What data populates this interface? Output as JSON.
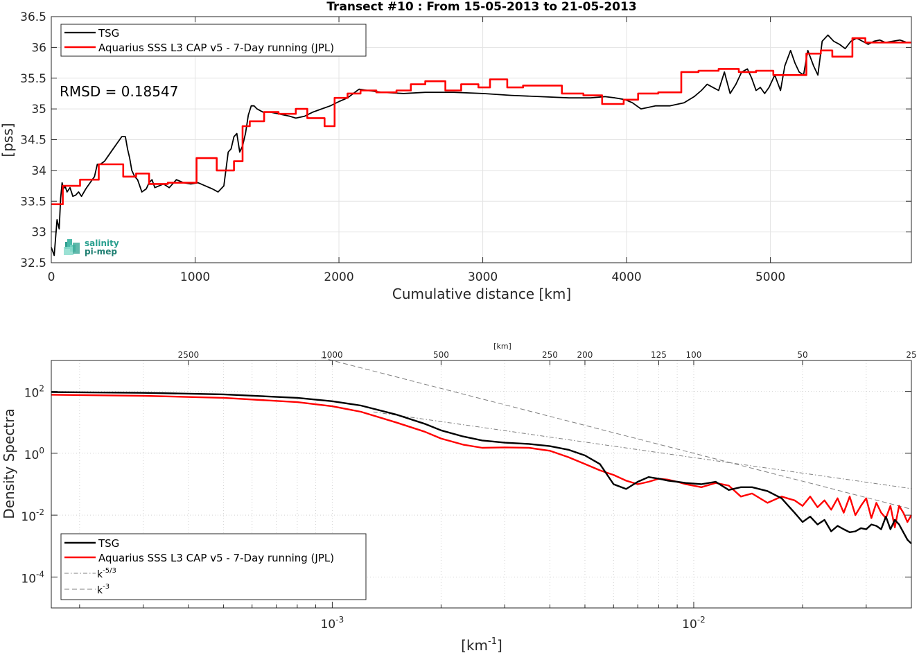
{
  "chart_data": [
    {
      "type": "line",
      "title": "Transect #10 : From 15-05-2013 to 21-05-2013",
      "xlabel": "Cumulative distance [km]",
      "ylabel": "[pss]",
      "xlim": [
        0,
        5980
      ],
      "ylim": [
        32.5,
        36.5
      ],
      "xticks": [
        0,
        1000,
        2000,
        3000,
        4000,
        5000
      ],
      "xtick_labels": [
        "0",
        "1000",
        "2000",
        "3000",
        "4000",
        "5000"
      ],
      "yticks": [
        32.5,
        33,
        33.5,
        34,
        34.5,
        35,
        35.5,
        36,
        36.5
      ],
      "ytick_labels": [
        "32.5",
        "33",
        "33.5",
        "34",
        "34.5",
        "35",
        "35.5",
        "36",
        "36.5"
      ],
      "grid": true,
      "legend_position": "top-left",
      "annotation": "RMSD = 0.18547",
      "logo_text": [
        "salinity",
        "pi-mep"
      ],
      "series": [
        {
          "name": "TSG",
          "color": "#000000",
          "x": [
            0,
            20,
            40,
            55,
            65,
            75,
            85,
            95,
            110,
            130,
            150,
            170,
            190,
            210,
            240,
            270,
            300,
            320,
            340,
            370,
            400,
            430,
            460,
            490,
            515,
            530,
            545,
            560,
            580,
            600,
            630,
            660,
            680,
            700,
            720,
            750,
            780,
            820,
            870,
            920,
            970,
            1020,
            1070,
            1120,
            1160,
            1200,
            1230,
            1250,
            1270,
            1290,
            1310,
            1330,
            1350,
            1370,
            1390,
            1410,
            1430,
            1470,
            1520,
            1580,
            1620,
            1660,
            1700,
            1760,
            1820,
            1880,
            1940,
            2000,
            2060,
            2100,
            2140,
            2200,
            2300,
            2450,
            2600,
            2800,
            3000,
            3200,
            3400,
            3600,
            3750,
            3850,
            3920,
            3990,
            4040,
            4100,
            4200,
            4300,
            4400,
            4470,
            4520,
            4560,
            4600,
            4640,
            4680,
            4720,
            4760,
            4800,
            4840,
            4870,
            4900,
            4930,
            4960,
            4990,
            5030,
            5070,
            5100,
            5140,
            5170,
            5200,
            5230,
            5260,
            5300,
            5330,
            5360,
            5400,
            5440,
            5480,
            5520,
            5560,
            5600,
            5640,
            5680,
            5720,
            5760,
            5800,
            5850,
            5900,
            5950,
            5980
          ],
          "y": [
            32.75,
            32.62,
            33.2,
            33.05,
            33.55,
            33.8,
            33.7,
            33.75,
            33.65,
            33.72,
            33.58,
            33.6,
            33.65,
            33.58,
            33.7,
            33.8,
            33.9,
            34.1,
            34.1,
            34.15,
            34.25,
            34.35,
            34.45,
            34.55,
            34.55,
            34.35,
            34.2,
            34.0,
            33.9,
            33.85,
            33.65,
            33.7,
            33.8,
            33.85,
            33.72,
            33.75,
            33.78,
            33.72,
            33.85,
            33.8,
            33.78,
            33.8,
            33.75,
            33.7,
            33.65,
            33.75,
            34.3,
            34.35,
            34.55,
            34.6,
            34.3,
            34.4,
            34.6,
            34.9,
            35.05,
            35.05,
            35.0,
            34.95,
            34.95,
            34.92,
            34.9,
            34.88,
            34.85,
            34.88,
            34.95,
            35.0,
            35.05,
            35.12,
            35.18,
            35.25,
            35.32,
            35.3,
            35.27,
            35.25,
            35.27,
            35.27,
            35.25,
            35.22,
            35.2,
            35.18,
            35.18,
            35.2,
            35.18,
            35.15,
            35.1,
            35.0,
            35.05,
            35.05,
            35.1,
            35.2,
            35.3,
            35.4,
            35.35,
            35.3,
            35.6,
            35.25,
            35.4,
            35.6,
            35.65,
            35.5,
            35.3,
            35.35,
            35.25,
            35.35,
            35.55,
            35.3,
            35.7,
            35.95,
            35.75,
            35.6,
            35.55,
            35.95,
            35.7,
            35.55,
            36.1,
            36.2,
            36.1,
            36.05,
            35.98,
            36.1,
            36.15,
            36.1,
            36.05,
            36.1,
            36.12,
            36.08,
            36.1,
            36.12,
            36.08,
            36.08
          ]
        },
        {
          "name": "Aquarius SSS L3 CAP v5 - 7-Day running (JPL)",
          "color": "#ff0000",
          "x": [
            0,
            80,
            80,
            200,
            200,
            330,
            330,
            500,
            500,
            590,
            590,
            680,
            680,
            810,
            810,
            1010,
            1010,
            1150,
            1150,
            1270,
            1270,
            1330,
            1330,
            1380,
            1380,
            1480,
            1480,
            1580,
            1580,
            1700,
            1700,
            1780,
            1780,
            1900,
            1900,
            1970,
            1970,
            2060,
            2060,
            2150,
            2150,
            2260,
            2260,
            2400,
            2400,
            2500,
            2500,
            2600,
            2600,
            2740,
            2740,
            2850,
            2850,
            2970,
            2970,
            3050,
            3050,
            3170,
            3170,
            3280,
            3280,
            3400,
            3400,
            3550,
            3550,
            3700,
            3700,
            3830,
            3830,
            3980,
            3980,
            4080,
            4080,
            4220,
            4220,
            4380,
            4380,
            4500,
            4500,
            4640,
            4640,
            4780,
            4780,
            4900,
            4900,
            5020,
            5020,
            5180,
            5180,
            5250,
            5250,
            5350,
            5350,
            5430,
            5430,
            5570,
            5570,
            5660,
            5660,
            5760,
            5760,
            5820,
            5820,
            5980
          ],
          "y": [
            33.45,
            33.45,
            33.75,
            33.75,
            33.85,
            33.85,
            34.1,
            34.1,
            33.9,
            33.9,
            33.95,
            33.95,
            33.78,
            33.78,
            33.8,
            33.8,
            34.2,
            34.2,
            34.0,
            34.0,
            34.15,
            34.15,
            34.72,
            34.72,
            34.8,
            34.8,
            34.95,
            34.95,
            34.92,
            34.92,
            35.0,
            35.0,
            34.85,
            34.85,
            34.72,
            34.72,
            35.18,
            35.18,
            35.25,
            35.25,
            35.3,
            35.3,
            35.27,
            35.27,
            35.3,
            35.3,
            35.4,
            35.4,
            35.45,
            35.45,
            35.3,
            35.3,
            35.4,
            35.4,
            35.35,
            35.35,
            35.48,
            35.48,
            35.35,
            35.35,
            35.38,
            35.38,
            35.38,
            35.38,
            35.25,
            35.25,
            35.22,
            35.22,
            35.08,
            35.08,
            35.15,
            35.15,
            35.25,
            35.25,
            35.27,
            35.27,
            35.6,
            35.6,
            35.62,
            35.62,
            35.65,
            35.65,
            35.6,
            35.6,
            35.62,
            35.62,
            35.55,
            35.55,
            35.55,
            35.55,
            35.9,
            35.9,
            35.95,
            35.95,
            35.85,
            35.85,
            36.15,
            36.15,
            36.08,
            36.08,
            36.08,
            36.08,
            36.08,
            36.08
          ]
        }
      ]
    },
    {
      "type": "line",
      "title": "",
      "xlabel": "[km-1]",
      "xlabel_main": "[km",
      "xlabel_sup": "-1",
      "xlabel_end": "]",
      "ylabel": "Density Spectra",
      "xscale": "log",
      "yscale": "log",
      "xlim": [
        0.000167,
        0.04
      ],
      "ylim": [
        1e-05,
        1000
      ],
      "xticks": [
        0.001,
        0.01
      ],
      "xtick_labels": [
        {
          "base": "10",
          "exp": "-3"
        },
        {
          "base": "10",
          "exp": "-2"
        }
      ],
      "yticks": [
        0.0001,
        0.01,
        1,
        100
      ],
      "ytick_labels": [
        {
          "base": "10",
          "exp": "-4"
        },
        {
          "base": "10",
          "exp": "-2"
        },
        {
          "base": "10",
          "exp": "0"
        },
        {
          "base": "10",
          "exp": "2"
        }
      ],
      "top_axis_label": "[km]",
      "top_axis_ticks_km": [
        2500,
        1000,
        500,
        250,
        200,
        125,
        100,
        50,
        25
      ],
      "top_axis_tick_labels": [
        "2500",
        "1000",
        "500",
        "250",
        "200",
        "125",
        "100",
        "50",
        "25"
      ],
      "grid": true,
      "legend_position": "bottom-left",
      "series": [
        {
          "name": "TSG",
          "color": "#000000",
          "x": [
            0.000167,
            0.0003,
            0.0005,
            0.0008,
            0.001,
            0.0012,
            0.0015,
            0.0018,
            0.002,
            0.0023,
            0.0026,
            0.003,
            0.0035,
            0.004,
            0.0045,
            0.005,
            0.0055,
            0.006,
            0.0065,
            0.007,
            0.0075,
            0.008,
            0.0085,
            0.009,
            0.0095,
            0.0105,
            0.0115,
            0.0125,
            0.0135,
            0.0145,
            0.016,
            0.0175,
            0.019,
            0.02,
            0.021,
            0.022,
            0.023,
            0.024,
            0.025,
            0.026,
            0.027,
            0.028,
            0.029,
            0.03,
            0.031,
            0.032,
            0.033,
            0.034,
            0.035,
            0.036,
            0.037,
            0.038,
            0.039,
            0.04
          ],
          "y": [
            95,
            90,
            80,
            62,
            48,
            35,
            18,
            9,
            5.5,
            3.5,
            2.6,
            2.2,
            2.0,
            1.7,
            1.3,
            0.85,
            0.45,
            0.1,
            0.07,
            0.12,
            0.17,
            0.15,
            0.13,
            0.12,
            0.11,
            0.1,
            0.12,
            0.065,
            0.08,
            0.08,
            0.06,
            0.035,
            0.012,
            0.006,
            0.009,
            0.005,
            0.007,
            0.003,
            0.0045,
            0.0035,
            0.0028,
            0.003,
            0.0038,
            0.0035,
            0.005,
            0.0045,
            0.0035,
            0.009,
            0.0035,
            0.007,
            0.005,
            0.0028,
            0.0016,
            0.0012
          ]
        },
        {
          "name": "Aquarius SSS L3 CAP v5 - 7-Day running (JPL)",
          "color": "#ff0000",
          "x": [
            0.000167,
            0.0003,
            0.0005,
            0.0008,
            0.001,
            0.0012,
            0.0015,
            0.0018,
            0.002,
            0.0023,
            0.0026,
            0.003,
            0.0035,
            0.004,
            0.0045,
            0.005,
            0.0055,
            0.006,
            0.0065,
            0.007,
            0.0075,
            0.008,
            0.0085,
            0.009,
            0.0095,
            0.0105,
            0.0115,
            0.0125,
            0.0135,
            0.0145,
            0.016,
            0.0175,
            0.019,
            0.02,
            0.021,
            0.022,
            0.023,
            0.024,
            0.025,
            0.026,
            0.027,
            0.028,
            0.029,
            0.03,
            0.031,
            0.032,
            0.033,
            0.034,
            0.035,
            0.036,
            0.037,
            0.038,
            0.039,
            0.04
          ],
          "y": [
            78,
            72,
            62,
            45,
            33,
            22,
            10,
            5,
            3,
            1.9,
            1.5,
            1.55,
            1.5,
            1.2,
            0.75,
            0.45,
            0.28,
            0.2,
            0.13,
            0.1,
            0.12,
            0.15,
            0.14,
            0.12,
            0.1,
            0.08,
            0.11,
            0.09,
            0.04,
            0.05,
            0.025,
            0.04,
            0.03,
            0.02,
            0.04,
            0.018,
            0.03,
            0.015,
            0.035,
            0.012,
            0.04,
            0.01,
            0.02,
            0.035,
            0.008,
            0.025,
            0.012,
            0.008,
            0.02,
            0.004,
            0.02,
            0.012,
            0.006,
            0.01
          ]
        },
        {
          "name": "k^-5/3",
          "legend_main": "k",
          "legend_sup": "-5/3",
          "color": "#808080",
          "style": "dash-dot",
          "x": [
            0.0013,
            0.04
          ],
          "y": [
            21.7,
            0.0718
          ]
        },
        {
          "name": "k^-3",
          "legend_main": "k",
          "legend_sup": "-3",
          "color": "#808080",
          "style": "dashed",
          "x": [
            0.00093,
            0.04
          ],
          "y": [
            1243,
            0.0156
          ]
        }
      ]
    }
  ]
}
